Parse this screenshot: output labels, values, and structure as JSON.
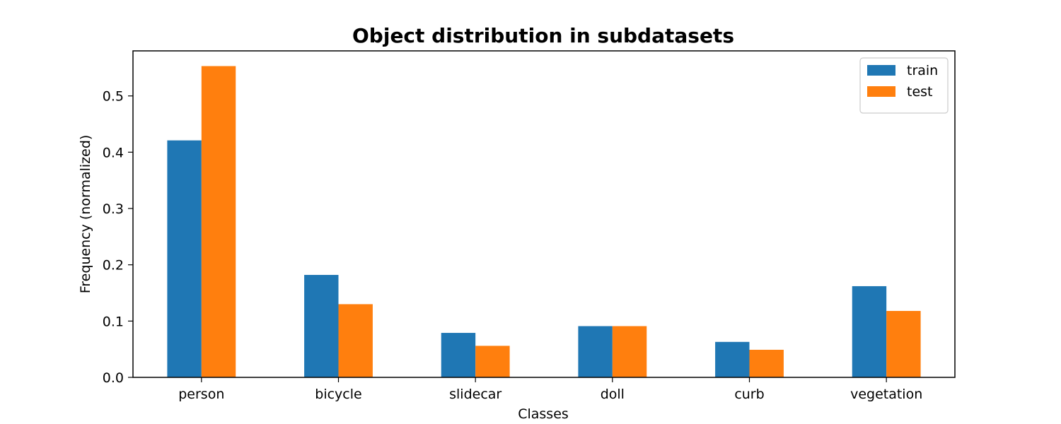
{
  "chart_data": {
    "type": "bar",
    "title": "Object distribution in subdatasets",
    "xlabel": "Classes",
    "ylabel": "Frequency (normalized)",
    "categories": [
      "person",
      "bicycle",
      "slidecar",
      "doll",
      "curb",
      "vegetation"
    ],
    "series": [
      {
        "name": "train",
        "color": "#1f77b4",
        "values": [
          0.421,
          0.182,
          0.079,
          0.091,
          0.063,
          0.162
        ]
      },
      {
        "name": "test",
        "color": "#ff7f0e",
        "values": [
          0.553,
          0.13,
          0.056,
          0.091,
          0.049,
          0.118
        ]
      }
    ],
    "ylim": [
      0,
      0.58
    ],
    "yticks": [
      0.0,
      0.1,
      0.2,
      0.3,
      0.4,
      0.5
    ],
    "ytick_labels": [
      "0.0",
      "0.1",
      "0.2",
      "0.3",
      "0.4",
      "0.5"
    ],
    "grid": false,
    "legend_position": "top-right"
  }
}
